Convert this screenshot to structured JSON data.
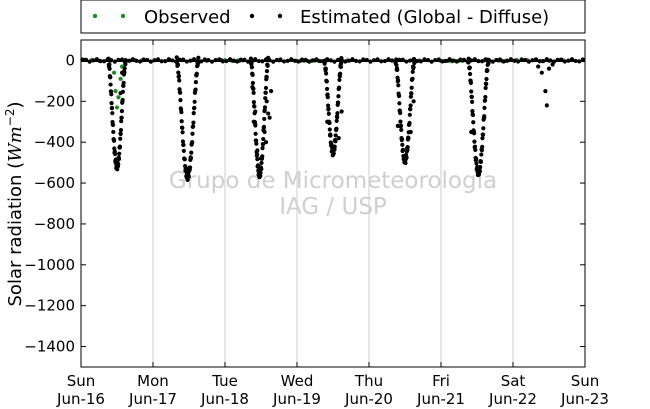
{
  "chart_data": {
    "type": "scatter",
    "title": "",
    "ylabel_prefix": "Solar radiation (",
    "ylabel_math": "Wm",
    "ylabel_sup": "−2",
    "ylabel_suffix": ")",
    "ylim": [
      -1500,
      100
    ],
    "yticks": [
      0,
      -200,
      -400,
      -600,
      -800,
      -1000,
      -1200,
      -1400
    ],
    "xlim": [
      0,
      7
    ],
    "xticks": [
      {
        "x": 0,
        "day": "Sun",
        "date": "Jun-16"
      },
      {
        "x": 1,
        "day": "Mon",
        "date": "Jun-17"
      },
      {
        "x": 2,
        "day": "Tue",
        "date": "Jun-18"
      },
      {
        "x": 3,
        "day": "Wed",
        "date": "Jun-19"
      },
      {
        "x": 4,
        "day": "Thu",
        "date": "Jun-20"
      },
      {
        "x": 5,
        "day": "Fri",
        "date": "Jun-21"
      },
      {
        "x": 6,
        "day": "Sat",
        "date": "Jun-22"
      },
      {
        "x": 7,
        "day": "Sun",
        "date": "Jun-23"
      }
    ],
    "grid": "vertical",
    "legend_position": "top-above",
    "series": [
      {
        "name": "Observed",
        "color": "#1f8a1f",
        "points": [
          [
            0.05,
            3
          ],
          [
            0.15,
            2
          ],
          [
            0.25,
            -1
          ],
          [
            0.4,
            -2
          ],
          [
            0.46,
            -60
          ],
          [
            0.48,
            -150
          ],
          [
            0.5,
            -230
          ],
          [
            0.52,
            -180
          ],
          [
            0.55,
            -90
          ],
          [
            0.57,
            -30
          ],
          [
            0.75,
            1
          ],
          [
            0.85,
            0
          ],
          [
            1.75,
            -2
          ],
          [
            1.95,
            2
          ],
          [
            2.0,
            1
          ],
          [
            2.1,
            -2
          ],
          [
            2.12,
            -2
          ],
          [
            2.15,
            -3
          ],
          [
            2.18,
            -1
          ],
          [
            2.2,
            -2
          ],
          [
            2.25,
            0
          ],
          [
            2.75,
            0
          ],
          [
            3.0,
            -2
          ],
          [
            3.05,
            -3
          ],
          [
            3.1,
            -2
          ],
          [
            3.15,
            -3
          ],
          [
            3.2,
            -2
          ],
          [
            3.25,
            -1
          ],
          [
            3.3,
            -2
          ],
          [
            3.35,
            -3
          ],
          [
            3.4,
            -1
          ],
          [
            3.7,
            0
          ],
          [
            4.7,
            0
          ],
          [
            5.0,
            -3
          ],
          [
            5.05,
            -2
          ],
          [
            5.1,
            -3
          ],
          [
            5.15,
            -4
          ],
          [
            5.2,
            -2
          ],
          [
            5.25,
            -1
          ],
          [
            5.3,
            -2
          ],
          [
            5.6,
            0
          ],
          [
            5.8,
            -1
          ],
          [
            5.85,
            -3
          ],
          [
            5.9,
            -2
          ],
          [
            6.05,
            2
          ],
          [
            6.2,
            1
          ],
          [
            6.4,
            -3
          ],
          [
            6.5,
            -2
          ],
          [
            6.7,
            0
          ]
        ]
      },
      {
        "name": "Estimated (Global - Diffuse)",
        "color": "#000000",
        "daily_curves": [
          {
            "center": 0.5,
            "width": 0.12,
            "peak": -520
          },
          {
            "center": 1.48,
            "width": 0.15,
            "peak": -570
          },
          {
            "center": 2.48,
            "width": 0.12,
            "peak": -560
          },
          {
            "center": 3.5,
            "width": 0.12,
            "peak": -450
          },
          {
            "center": 4.5,
            "width": 0.13,
            "peak": -490
          },
          {
            "center": 5.52,
            "width": 0.14,
            "peak": -550
          }
        ],
        "extra_points": [
          [
            0.55,
            -160
          ],
          [
            0.57,
            -60
          ],
          [
            2.38,
            -130
          ],
          [
            2.4,
            -300
          ],
          [
            2.42,
            -250
          ],
          [
            2.55,
            -350
          ],
          [
            2.57,
            -400
          ],
          [
            2.6,
            -260
          ],
          [
            2.62,
            -280
          ],
          [
            2.64,
            -150
          ],
          [
            2.58,
            -200
          ],
          [
            2.45,
            -440
          ],
          [
            2.5,
            -480
          ],
          [
            3.42,
            -300
          ],
          [
            3.58,
            -380
          ],
          [
            3.62,
            -250
          ],
          [
            4.4,
            -320
          ],
          [
            4.58,
            -350
          ],
          [
            4.62,
            -200
          ],
          [
            5.42,
            -350
          ],
          [
            5.6,
            -280
          ],
          [
            6.35,
            -30
          ],
          [
            6.4,
            -60
          ],
          [
            6.45,
            -150
          ],
          [
            6.47,
            -220
          ],
          [
            6.5,
            -40
          ],
          [
            6.55,
            -20
          ]
        ]
      }
    ],
    "watermark_line1": "Grupo de Micrometeorologia",
    "watermark_line2": "IAG / USP"
  }
}
